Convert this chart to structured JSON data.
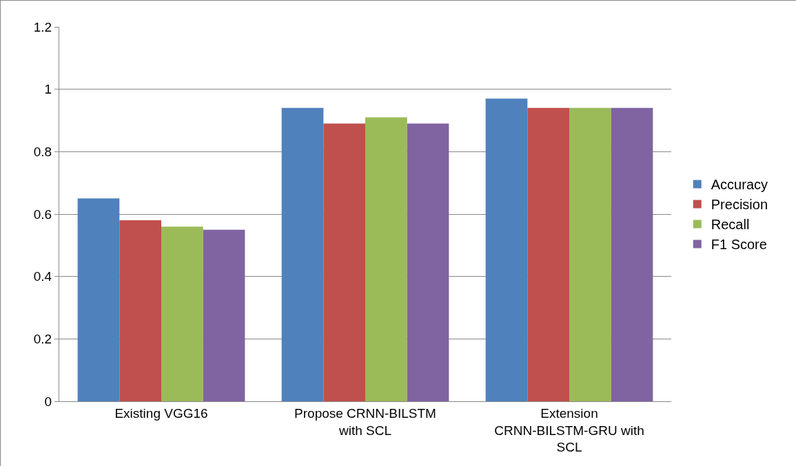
{
  "chart_data": {
    "type": "bar",
    "categories": [
      "Existing VGG16",
      "Propose CRNN-BILSTM with SCL",
      "Extension CRNN-BILSTM-GRU with SCL"
    ],
    "series": [
      {
        "name": "Accuracy",
        "color": "#4f81bd",
        "values": [
          0.65,
          0.94,
          0.97
        ]
      },
      {
        "name": "Precision",
        "color": "#c0504d",
        "values": [
          0.58,
          0.89,
          0.94
        ]
      },
      {
        "name": "Recall",
        "color": "#9bbb59",
        "values": [
          0.56,
          0.91,
          0.94
        ]
      },
      {
        "name": "F1 Score",
        "color": "#8064a2",
        "values": [
          0.55,
          0.89,
          0.94
        ]
      }
    ],
    "ylim": [
      0,
      1.2
    ],
    "yticks": [
      0,
      0.2,
      0.4,
      0.6,
      0.8,
      1,
      1.2
    ],
    "grid": "y",
    "legend": "right"
  }
}
